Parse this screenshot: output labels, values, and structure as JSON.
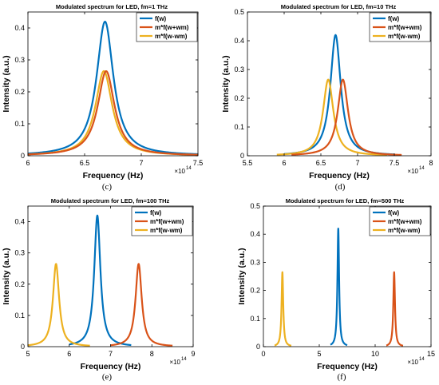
{
  "colors": {
    "f": "#0072BD",
    "plus": "#D95319",
    "minus": "#EDB120"
  },
  "chart_data": [
    {
      "type": "line",
      "title": "Modulated spectrum for LED, fm=1 THz",
      "xlabel": "Frequency (Hz)",
      "ylabel": "Intensity (a.u.)",
      "x_multiplier_base": "×10",
      "x_multiplier_exp": "14",
      "xlim": [
        6.0,
        7.5
      ],
      "ylim": [
        0,
        0.45
      ],
      "xticks": [
        6,
        6.5,
        7,
        7.5
      ],
      "xtick_labels": [
        "6",
        "6.5",
        "7",
        "7.5"
      ],
      "yticks": [
        0,
        0.1,
        0.2,
        0.3,
        0.4
      ],
      "ytick_labels": [
        "0",
        "0.1",
        "0.2",
        "0.3",
        "0.4"
      ],
      "legend_position": "top-right",
      "caption": "(c)",
      "series": [
        {
          "name": "f(w)",
          "center": 6.68,
          "peak": 0.42,
          "width": 0.09,
          "x_range": [
            6.0,
            7.5
          ]
        },
        {
          "name": "m*f(w+wm)",
          "center": 6.69,
          "peak": 0.265,
          "width": 0.09,
          "x_range": [
            6.0,
            7.5
          ]
        },
        {
          "name": "m*f(w-wm)",
          "center": 6.67,
          "peak": 0.265,
          "width": 0.09,
          "x_range": [
            6.0,
            7.5
          ]
        }
      ]
    },
    {
      "type": "line",
      "title": "Modulated spectrum for LED, fm=10 THz",
      "xlabel": "Frequency (Hz)",
      "ylabel": "Intensity (a.u.)",
      "x_multiplier_base": "×10",
      "x_multiplier_exp": "14",
      "xlim": [
        5.5,
        8.0
      ],
      "ylim": [
        0,
        0.5
      ],
      "xticks": [
        5.5,
        6,
        6.5,
        7,
        7.5,
        8
      ],
      "xtick_labels": [
        "5.5",
        "6",
        "6.5",
        "7",
        "7.5",
        "8"
      ],
      "yticks": [
        0,
        0.1,
        0.2,
        0.3,
        0.4,
        0.5
      ],
      "ytick_labels": [
        "0",
        "0.1",
        "0.2",
        "0.3",
        "0.4",
        "0.5"
      ],
      "legend_position": "top-right",
      "caption": "(d)",
      "series": [
        {
          "name": "f(w)",
          "center": 6.7,
          "peak": 0.42,
          "width": 0.085,
          "x_range": [
            6.0,
            7.5
          ]
        },
        {
          "name": "m*f(w+wm)",
          "center": 6.8,
          "peak": 0.265,
          "width": 0.085,
          "x_range": [
            6.1,
            7.6
          ]
        },
        {
          "name": "m*f(w-wm)",
          "center": 6.6,
          "peak": 0.265,
          "width": 0.085,
          "x_range": [
            5.9,
            7.4
          ]
        }
      ]
    },
    {
      "type": "line",
      "title": "Modulated spectrum for LED, fm=100 THz",
      "xlabel": "Frequency (Hz)",
      "ylabel": "Intensity (a.u.)",
      "x_multiplier_base": "×10",
      "x_multiplier_exp": "14",
      "xlim": [
        5,
        9
      ],
      "ylim": [
        0,
        0.45
      ],
      "xticks": [
        5,
        6,
        7,
        8,
        9
      ],
      "xtick_labels": [
        "5",
        "6",
        "7",
        "8",
        "9"
      ],
      "yticks": [
        0,
        0.1,
        0.2,
        0.3,
        0.4
      ],
      "ytick_labels": [
        "0",
        "0.1",
        "0.2",
        "0.3",
        "0.4"
      ],
      "legend_position": "top-right",
      "caption": "(e)",
      "series": [
        {
          "name": "f(w)",
          "center": 6.68,
          "peak": 0.42,
          "width": 0.09,
          "x_range": [
            6.0,
            7.5
          ]
        },
        {
          "name": "m*f(w+wm)",
          "center": 7.68,
          "peak": 0.265,
          "width": 0.09,
          "x_range": [
            7.0,
            8.5
          ]
        },
        {
          "name": "m*f(w-wm)",
          "center": 5.68,
          "peak": 0.265,
          "width": 0.09,
          "x_range": [
            5.0,
            6.5
          ]
        }
      ]
    },
    {
      "type": "line",
      "title": "Modulated spectrum for LED, fm=500 THz",
      "xlabel": "Frequency (Hz)",
      "ylabel": "Intensity (a.u.)",
      "x_multiplier_base": "×10",
      "x_multiplier_exp": "14",
      "xlim": [
        0,
        15
      ],
      "ylim": [
        0,
        0.5
      ],
      "xticks": [
        0,
        5,
        10,
        15
      ],
      "xtick_labels": [
        "0",
        "5",
        "10",
        "15"
      ],
      "yticks": [
        0,
        0.1,
        0.2,
        0.3,
        0.4,
        0.5
      ],
      "ytick_labels": [
        "0",
        "0.1",
        "0.2",
        "0.3",
        "0.4",
        "0.5"
      ],
      "legend_position": "top-right",
      "caption": "(f)",
      "series": [
        {
          "name": "f(w)",
          "center": 6.7,
          "peak": 0.42,
          "width": 0.09,
          "x_range": [
            6.0,
            7.5
          ]
        },
        {
          "name": "m*f(w+wm)",
          "center": 11.7,
          "peak": 0.265,
          "width": 0.09,
          "x_range": [
            11.0,
            12.5
          ]
        },
        {
          "name": "m*f(w-wm)",
          "center": 1.7,
          "peak": 0.265,
          "width": 0.09,
          "x_range": [
            1.0,
            2.5
          ]
        }
      ]
    }
  ]
}
